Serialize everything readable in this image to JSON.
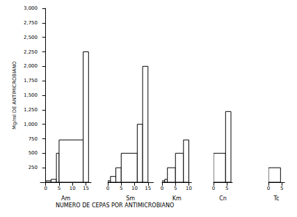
{
  "chart_data": {
    "type": "histogram",
    "x_label": "NUMERO DE CEPAS POR ANTIMICROBIANO",
    "y_label": "Mg/ml DE ANTIMICROBIANO",
    "ylim": [
      0,
      3000
    ],
    "yticks": [
      250,
      500,
      750,
      1000,
      1250,
      1500,
      1750,
      2000,
      2250,
      2500,
      2750,
      3000
    ],
    "grid": false,
    "color": "#000000",
    "panels": [
      {
        "name": "Am",
        "xlim": [
          -2,
          17
        ],
        "xticks": [
          0,
          5,
          10,
          15
        ],
        "bins": [
          0,
          2,
          4,
          5,
          14,
          16
        ],
        "values": [
          25,
          50,
          500,
          730,
          2250
        ]
      },
      {
        "name": "Sm",
        "xlim": [
          0,
          17
        ],
        "xticks": [
          0,
          5,
          10,
          15
        ],
        "bins": [
          0,
          1,
          3,
          5,
          11,
          13,
          15
        ],
        "values": [
          25,
          100,
          250,
          500,
          1000,
          2000
        ]
      },
      {
        "name": "Km",
        "xlim": [
          0,
          11
        ],
        "xticks": [
          0,
          5,
          10
        ],
        "bins": [
          0,
          1,
          2,
          5,
          8,
          10
        ],
        "values": [
          25,
          50,
          250,
          500,
          730
        ]
      },
      {
        "name": "Cn",
        "xlim": [
          0,
          7
        ],
        "xticks": [
          0,
          5
        ],
        "bins": [
          0,
          4.5,
          6.5
        ],
        "values": [
          500,
          1220
        ]
      },
      {
        "name": "Tc",
        "xlim": [
          0,
          6
        ],
        "xticks": [
          0,
          5
        ],
        "bins": [
          0,
          4.5
        ],
        "values": [
          250
        ]
      }
    ]
  }
}
